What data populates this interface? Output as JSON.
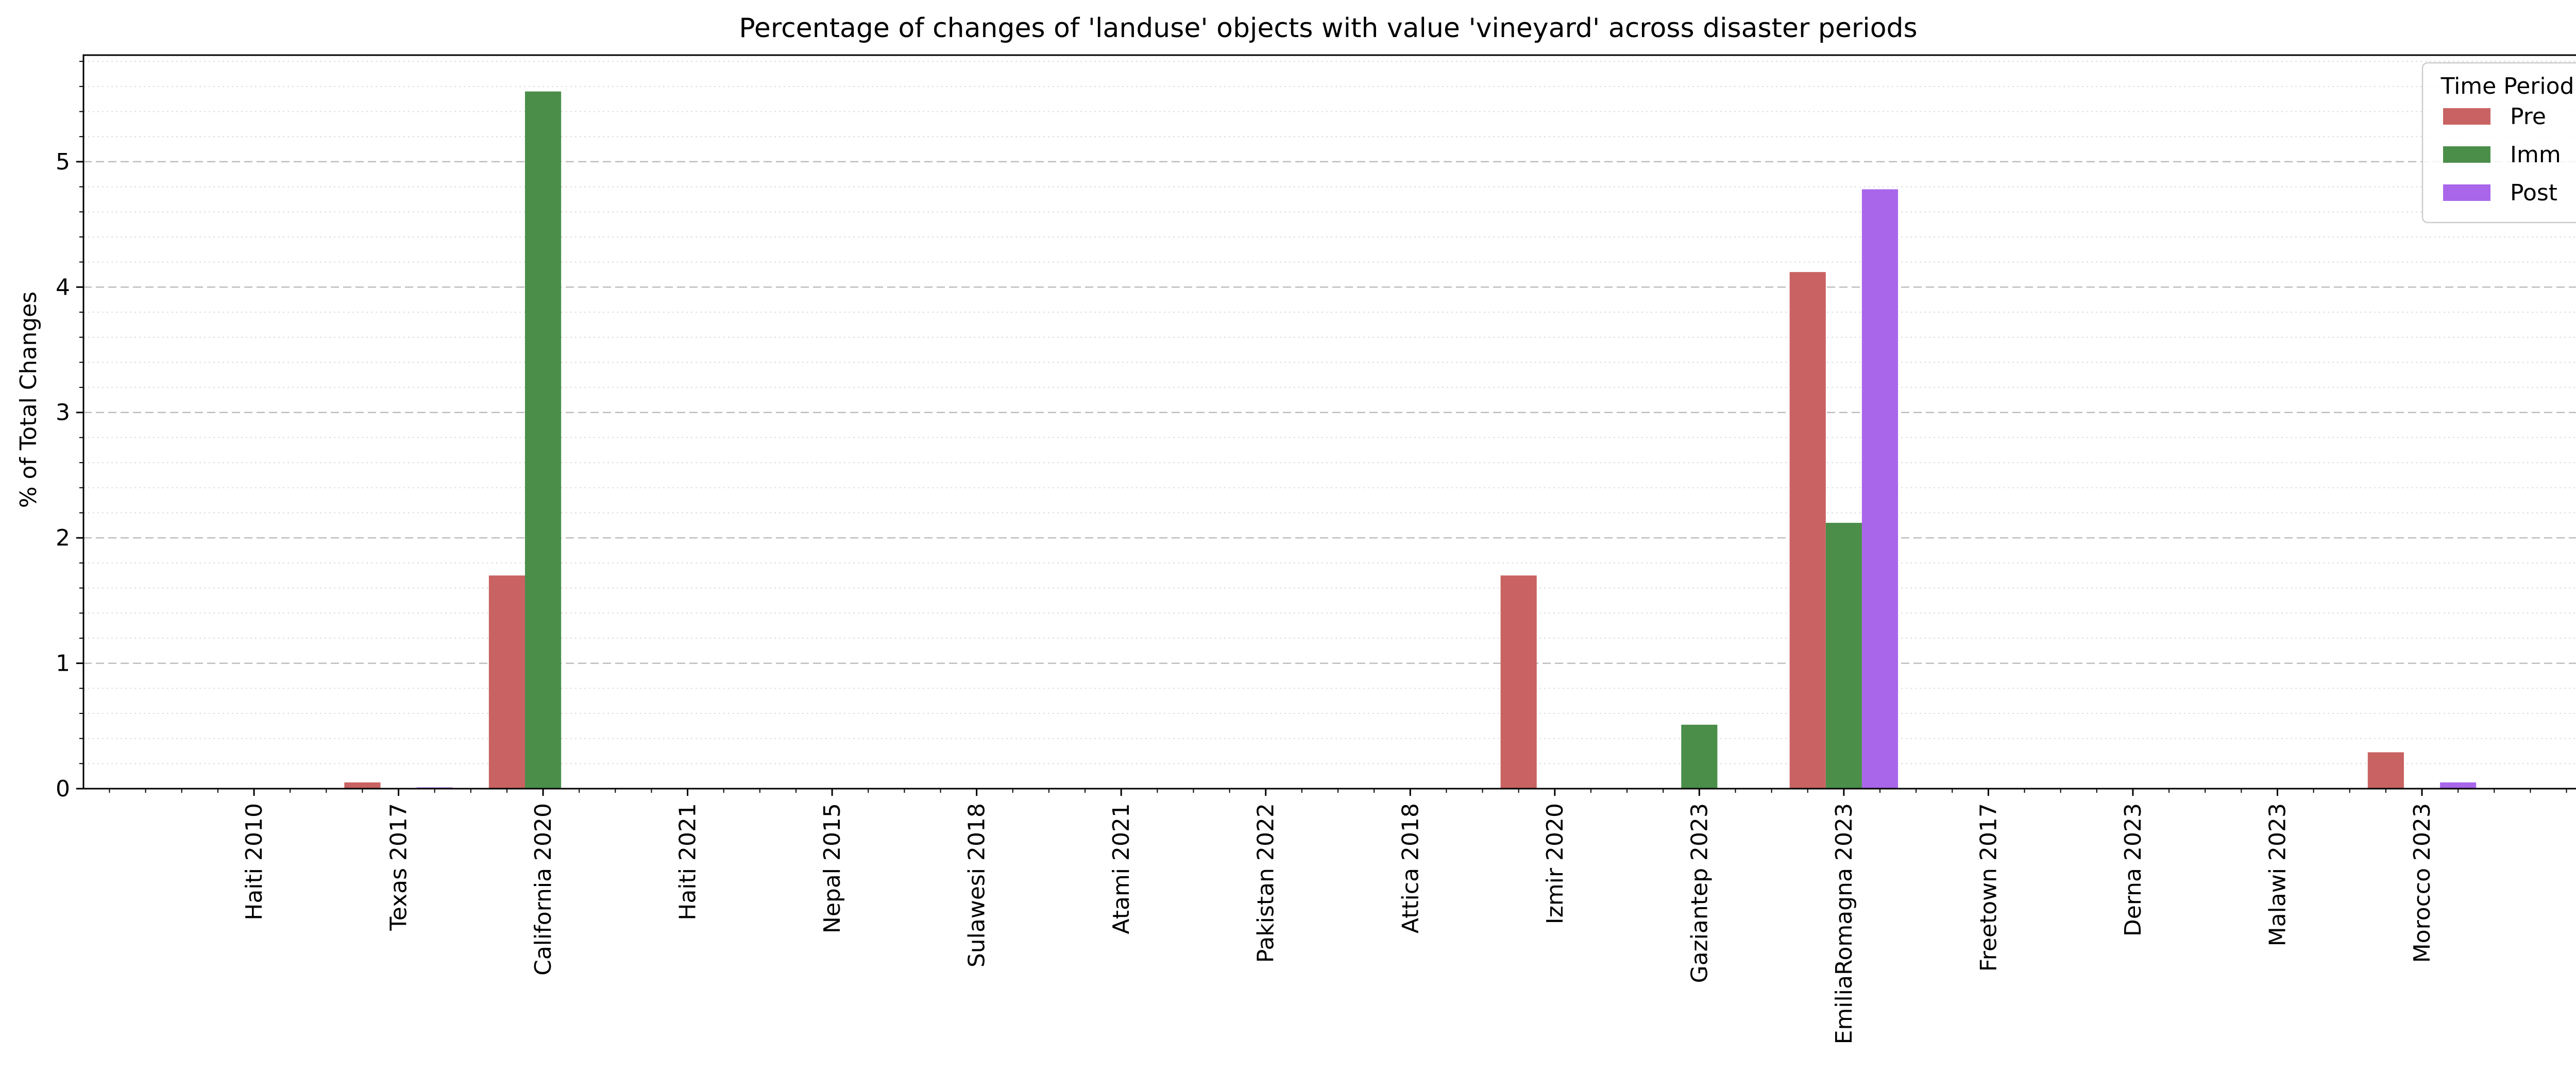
{
  "chart_data": {
    "type": "bar",
    "title": "Percentage of changes of 'landuse' objects with value 'vineyard' across disaster periods",
    "xlabel": "",
    "ylabel": "% of Total Changes",
    "ylim": [
      0,
      5.85
    ],
    "yticks": [
      0,
      1,
      2,
      3,
      4,
      5
    ],
    "grid": "horizontal dashed major, dotted minor",
    "legend_placement": "top-right",
    "legend_title": "Time Period",
    "categories": [
      "Haiti 2010",
      "Texas 2017",
      "California 2020",
      "Haiti 2021",
      "Nepal 2015",
      "Sulawesi 2018",
      "Atami 2021",
      "Pakistan 2022",
      "Attica 2018",
      "Izmir 2020",
      "Gaziantep 2023",
      "EmiliaRomagna 2023",
      "Freetown 2017",
      "Derna 2023",
      "Malawi 2023",
      "Morocco 2023"
    ],
    "series": [
      {
        "name": "Pre",
        "color": "#c96262",
        "values": [
          0,
          0.05,
          1.7,
          0,
          0,
          0,
          0,
          0,
          0,
          1.7,
          0,
          4.12,
          0,
          0,
          0,
          0.29
        ]
      },
      {
        "name": "Imm",
        "color": "#4a8e4a",
        "values": [
          0,
          0,
          5.56,
          0,
          0,
          0,
          0,
          0,
          0,
          0,
          0.51,
          2.12,
          0,
          0,
          0,
          0
        ]
      },
      {
        "name": "Post",
        "color": "#a966ea",
        "values": [
          0,
          0.01,
          0,
          0,
          0,
          0,
          0,
          0,
          0,
          0,
          0,
          4.78,
          0,
          0,
          0,
          0.05
        ]
      }
    ]
  }
}
